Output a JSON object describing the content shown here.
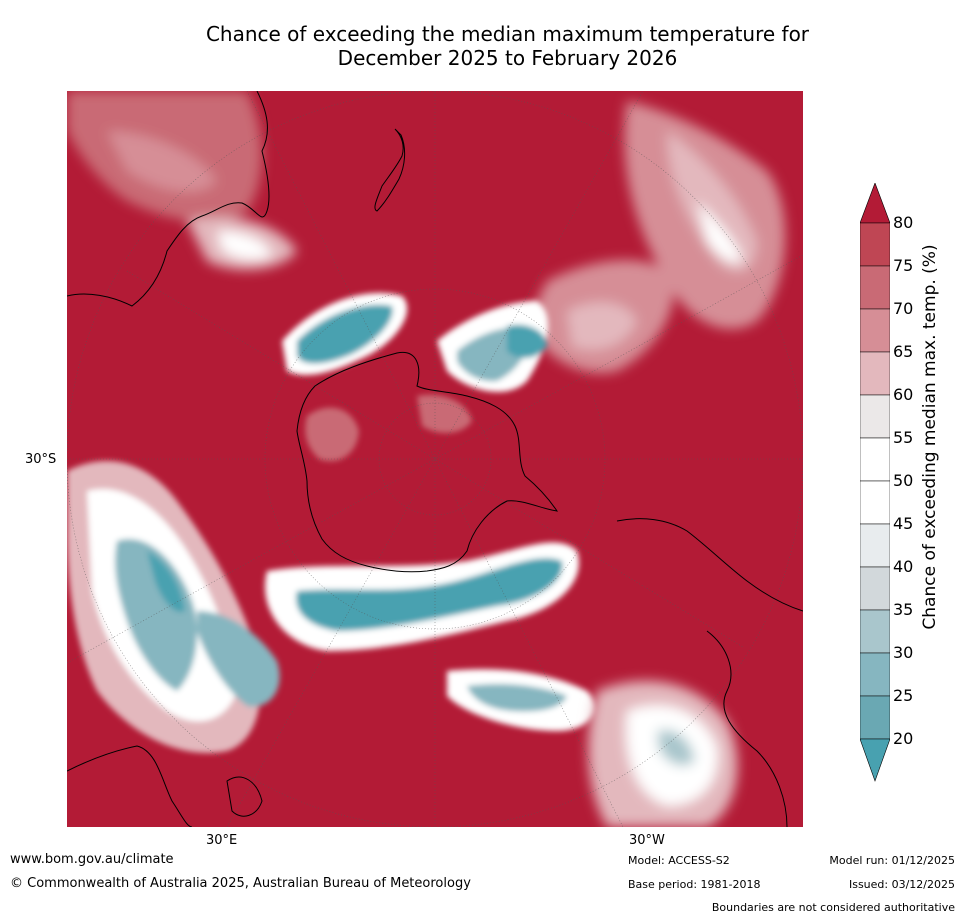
{
  "title_line1": "Chance of exceeding the median maximum temperature for",
  "title_line2": "December 2025 to February 2026",
  "axes": {
    "lat_label": "30°S",
    "lon_label_east": "30°E",
    "lon_label_west": "30°W"
  },
  "colorbar": {
    "label": "Chance of exceeding median max. temp. (%)",
    "ticks": [
      "20",
      "25",
      "30",
      "35",
      "40",
      "45",
      "50",
      "55",
      "60",
      "65",
      "70",
      "75",
      "80"
    ],
    "colors": {
      "below_20": "#48a1b0",
      "20_25": "#6aa8b3",
      "25_30": "#86b6c0",
      "30_35": "#a9c6cc",
      "35_40": "#d2d8db",
      "40_45": "#e8ecee",
      "45_50": "#ffffff",
      "50_55": "#ffffff",
      "55_60": "#ebe8e8",
      "60_65": "#e3b8bd",
      "65_70": "#d68e96",
      "70_75": "#c96a75",
      "75_80": "#bf4654",
      "above_80": "#b31b36"
    }
  },
  "footer": {
    "website": "www.bom.gov.au/climate",
    "copyright": "© Commonwealth of Australia 2025, Australian Bureau of Meteorology",
    "model": "Model: ACCESS-S2",
    "base_period": "Base period: 1981-2018",
    "model_run": "Model run: 01/12/2025",
    "issued": "Issued: 03/12/2025",
    "disclaimer": "Boundaries are not considered authoritative"
  }
}
